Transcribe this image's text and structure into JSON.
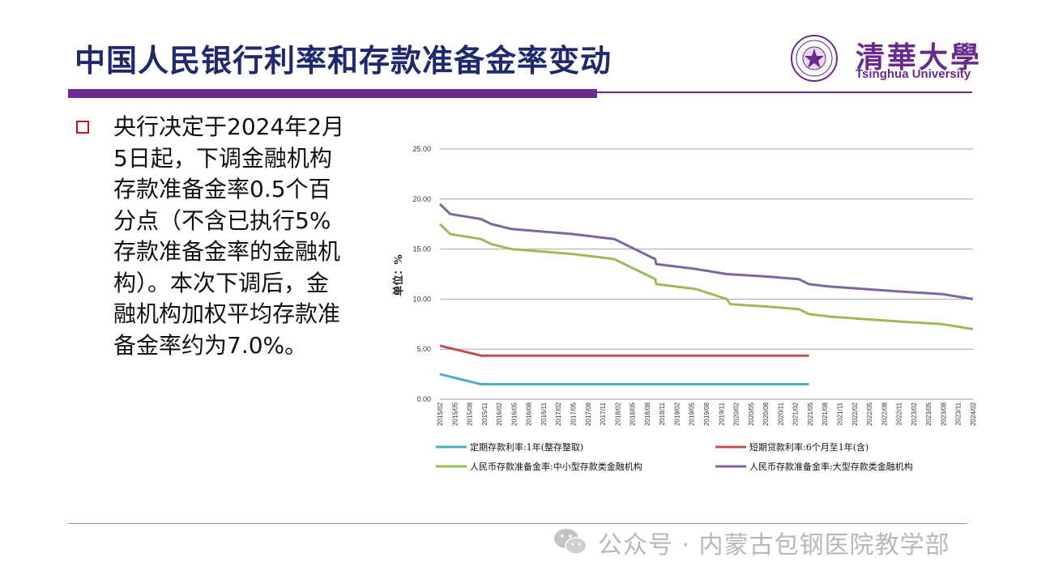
{
  "slide": {
    "title": "中国人民银行利率和存款准备金率变动",
    "logo_cn": "清華大學",
    "logo_en": "Tsinghua University",
    "body_lines": [
      "央行决定于2024年2月",
      "5日起，下调金融机构",
      "存款准备金率0.5个百",
      "分点（不含已执行5%",
      "存款准备金率的金融机",
      "构）。本次下调后，金",
      "融机构加权平均存款准",
      "备金率约为7.0%。"
    ],
    "watermark": "公众号 · 内蒙古包钢医院教学部"
  },
  "colors": {
    "title": "#1f2a6e",
    "accent_purple": "#6b2c8e",
    "bullet_red": "#c0171f"
  },
  "chart_data": {
    "type": "line",
    "ylabel": "单位：%",
    "ylim": [
      0,
      25
    ],
    "yticks": [
      "0.00",
      "5.00",
      "10.00",
      "15.00",
      "20.00",
      "25.00"
    ],
    "x_ticks": [
      "2015/02",
      "2015/05",
      "2015/08",
      "2015/11",
      "2016/02",
      "2016/05",
      "2016/08",
      "2016/11",
      "2017/02",
      "2017/05",
      "2017/08",
      "2017/11",
      "2018/02",
      "2018/05",
      "2018/08",
      "2018/11",
      "2019/02",
      "2019/05",
      "2019/08",
      "2019/11",
      "2020/02",
      "2020/05",
      "2020/08",
      "2020/11",
      "2021/02",
      "2021/05",
      "2021/08",
      "2021/11",
      "2022/02",
      "2022/05",
      "2022/08",
      "2022/11",
      "2023/02",
      "2023/05",
      "2023/08",
      "2023/11",
      "2024/02"
    ],
    "grid": true,
    "legend_position": "bottom",
    "series": [
      {
        "name": "定期存款利率:1年(整存整取)",
        "color": "#4bacc6",
        "points": [
          [
            0,
            2.5
          ],
          [
            2,
            2.0
          ],
          [
            3,
            1.75
          ],
          [
            4,
            1.5
          ],
          [
            36,
            1.5
          ]
        ]
      },
      {
        "name": "短期贷款利率:6个月至1年(含)",
        "color": "#c0504d",
        "points": [
          [
            0,
            5.35
          ],
          [
            1,
            5.1
          ],
          [
            2,
            4.85
          ],
          [
            3,
            4.6
          ],
          [
            4,
            4.35
          ],
          [
            36,
            4.35
          ]
        ]
      },
      {
        "name": "人民币存款准备金率:中小型存款类金融机构",
        "color": "#9bbb59",
        "points": [
          [
            0,
            17.5
          ],
          [
            1,
            16.5
          ],
          [
            4,
            16.0
          ],
          [
            5,
            15.5
          ],
          [
            7,
            15.0
          ],
          [
            13,
            14.5
          ],
          [
            17,
            14.0
          ],
          [
            20,
            12.5
          ],
          [
            21,
            12.0
          ],
          [
            21.1,
            11.5
          ],
          [
            25,
            11.0
          ],
          [
            28,
            10.0
          ],
          [
            28.3,
            9.5
          ],
          [
            32,
            9.25
          ],
          [
            35,
            9.0
          ],
          [
            36,
            8.5
          ],
          [
            38,
            8.25
          ],
          [
            45,
            7.75
          ],
          [
            49,
            7.5
          ],
          [
            52,
            7.0
          ]
        ]
      }
    ]
  }
}
